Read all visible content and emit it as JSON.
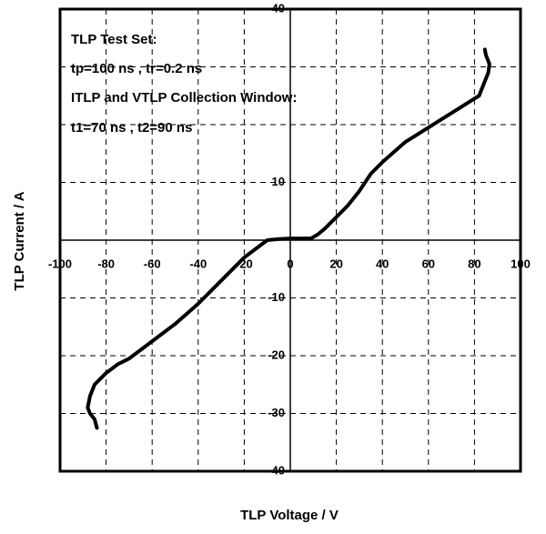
{
  "chart_data": {
    "type": "line",
    "xlabel": "TLP Voltage / V",
    "ylabel": "TLP Current / A",
    "annotations": [
      "TLP Test Set:",
      "tp=100 ns , tr=0.2 ns",
      "ITLP and VTLP Collection Window:",
      "t1=70 ns , t2=90 ns"
    ],
    "xlim": [
      -100,
      100
    ],
    "ylim": [
      -40,
      40
    ],
    "xticks": [
      -100,
      -80,
      -60,
      -40,
      -20,
      0,
      20,
      40,
      60,
      80,
      100
    ],
    "yticks": [
      -40,
      -30,
      -20,
      -10,
      10,
      40
    ],
    "grid": true,
    "series": [
      {
        "color": "#000000",
        "x": [
          -84,
          -85,
          -87,
          -88,
          -87,
          -85,
          -80,
          -75,
          -70,
          -65,
          -60,
          -50,
          -40,
          -30,
          -20,
          -15,
          -10,
          -5,
          0,
          5,
          9,
          12,
          15,
          20,
          25,
          30,
          35,
          40,
          50,
          60,
          70,
          78,
          82,
          84,
          86,
          86.5,
          85,
          84.5
        ],
        "values": [
          -32.5,
          -31,
          -30,
          -29,
          -27,
          -25,
          -23,
          -21.5,
          -20.5,
          -19,
          -17.5,
          -14.5,
          -11,
          -7,
          -3,
          -1.5,
          0,
          0.2,
          0.3,
          0.3,
          0.3,
          1,
          2,
          4,
          6,
          8.5,
          11.5,
          13.5,
          17,
          19.5,
          22,
          24,
          25,
          27,
          29,
          30.5,
          32,
          33
        ]
      }
    ]
  }
}
